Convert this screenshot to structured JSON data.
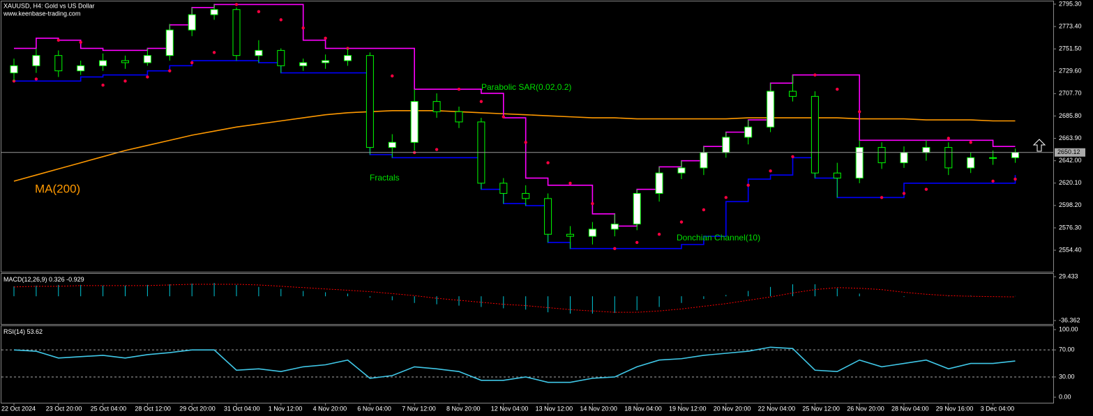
{
  "chart_data": [
    {
      "type": "candlestick",
      "title": "XAUUSD, H4:  Gold vs US Dollar",
      "subtitle": "www.keenbase-trading.com",
      "categories": [
        "22 Oct 2024",
        null,
        "23 Oct 20:00",
        null,
        "25 Oct 04:00",
        null,
        "28 Oct 12:00",
        null,
        "29 Oct 20:00",
        null,
        "31 Oct 04:00",
        null,
        "1 Nov 12:00",
        null,
        "4 Nov 20:00",
        null,
        "6 Nov 04:00",
        null,
        "7 Nov 12:00",
        null,
        "8 Nov 20:00",
        null,
        "12 Nov 04:00",
        null,
        "13 Nov 12:00",
        null,
        "14 Nov 20:00",
        null,
        "18 Nov 04:00",
        null,
        "19 Nov 12:00",
        null,
        "20 Nov 20:00",
        null,
        "22 Nov 04:00",
        null,
        "25 Nov 12:00",
        null,
        "26 Nov 20:00",
        null,
        "28 Nov 04:00",
        null,
        "29 Nov 16:00",
        null,
        "3 Dec 04:00",
        null
      ],
      "open": [
        2728,
        2735,
        2745,
        2730,
        2735,
        2740,
        2738,
        2745,
        2770,
        2785,
        2790,
        2745,
        2750,
        2735,
        2738,
        2740,
        2745,
        2655,
        2660,
        2700,
        2690,
        2680,
        2620,
        2610,
        2605,
        2570,
        2568,
        2575,
        2580,
        2610,
        2630,
        2635,
        2650,
        2665,
        2675,
        2710,
        2705,
        2630,
        2625,
        2655,
        2640,
        2650,
        2655,
        2635,
        2645,
        2645
      ],
      "high": [
        2742,
        2752,
        2750,
        2740,
        2747,
        2745,
        2752,
        2776,
        2792,
        2795,
        2792,
        2760,
        2752,
        2742,
        2746,
        2752,
        2748,
        2668,
        2712,
        2708,
        2695,
        2684,
        2625,
        2618,
        2610,
        2578,
        2582,
        2590,
        2614,
        2636,
        2642,
        2656,
        2670,
        2682,
        2718,
        2726,
        2710,
        2640,
        2662,
        2660,
        2656,
        2662,
        2660,
        2650,
        2652,
        2654
      ],
      "low": [
        2720,
        2728,
        2724,
        2726,
        2730,
        2732,
        2735,
        2740,
        2764,
        2780,
        2740,
        2738,
        2728,
        2730,
        2732,
        2735,
        2648,
        2645,
        2652,
        2684,
        2674,
        2614,
        2600,
        2598,
        2562,
        2556,
        2560,
        2568,
        2574,
        2602,
        2624,
        2628,
        2645,
        2658,
        2670,
        2700,
        2625,
        2606,
        2620,
        2634,
        2635,
        2642,
        2628,
        2630,
        2638,
        2640
      ],
      "close": [
        2735,
        2745,
        2730,
        2735,
        2740,
        2738,
        2745,
        2770,
        2785,
        2790,
        2745,
        2750,
        2735,
        2738,
        2740,
        2745,
        2655,
        2660,
        2700,
        2690,
        2680,
        2620,
        2610,
        2605,
        2570,
        2568,
        2575,
        2580,
        2610,
        2630,
        2635,
        2650,
        2665,
        2675,
        2710,
        2705,
        2630,
        2625,
        2655,
        2640,
        2650,
        2655,
        2635,
        2645,
        2645,
        2650.12
      ],
      "up_color": "#ffffff",
      "down_color": "#000000",
      "outline_color": "#00ff00",
      "ylim": [
        2533.3,
        2798
      ],
      "yticks": [
        {
          "value": 2554.4,
          "label": "2554.40"
        },
        {
          "value": 2576.3,
          "label": "2576.30"
        },
        {
          "value": 2598.2,
          "label": "2598.20"
        },
        {
          "value": 2620.1,
          "label": "2620.10"
        },
        {
          "value": 2642,
          "label": "2642.00"
        },
        {
          "value": 2663.9,
          "label": "2663.90"
        },
        {
          "value": 2685.8,
          "label": "2685.80"
        },
        {
          "value": 2707.7,
          "label": "2707.70"
        },
        {
          "value": 2729.6,
          "label": "2729.60"
        },
        {
          "value": 2751.5,
          "label": "2751.50"
        },
        {
          "value": 2773.4,
          "label": "2773.40"
        },
        {
          "value": 2795.3,
          "label": "2795.30"
        }
      ],
      "series": [
        {
          "name": "MA(200)",
          "color": "#ff9900",
          "style": "line",
          "values": [
            2622,
            2628,
            2634,
            2640,
            2646,
            2652,
            2657,
            2662,
            2667,
            2671,
            2675,
            2678,
            2681,
            2684,
            2687,
            2689,
            2690,
            2691,
            2691,
            2691,
            2690,
            2689,
            2688,
            2687,
            2686,
            2685,
            2684,
            2684,
            2683,
            2683,
            2683,
            2683,
            2683,
            2684,
            2684,
            2684,
            2684,
            2684,
            2683,
            2683,
            2683,
            2682,
            2682,
            2682,
            2681,
            2681
          ]
        },
        {
          "name": "Donchian Channel(10)",
          "color": "#ff00ff",
          "style": "step",
          "values": [
            2752,
            2762,
            2760,
            2752,
            2750,
            2750,
            2752,
            2775,
            2792,
            2795,
            2795,
            2795,
            2795,
            2760,
            2752,
            2752,
            2752,
            2752,
            2712,
            2712,
            2712,
            2708,
            2684,
            2625,
            2618,
            2618,
            2590,
            2578,
            2614,
            2636,
            2642,
            2656,
            2670,
            2682,
            2718,
            2726,
            2726,
            2726,
            2662,
            2662,
            2662,
            2662,
            2662,
            2662,
            2656,
            2656
          ]
        },
        {
          "color": "#0000ff",
          "style": "step",
          "values": [
            2720,
            2720,
            2720,
            2724,
            2726,
            2726,
            2730,
            2735,
            2740,
            2740,
            2740,
            2738,
            2728,
            2728,
            2728,
            2728,
            2648,
            2645,
            2645,
            2645,
            2645,
            2614,
            2600,
            2598,
            2562,
            2556,
            2556,
            2556,
            2556,
            2556,
            2560,
            2568,
            2602,
            2624,
            2628,
            2645,
            2625,
            2606,
            2606,
            2606,
            2620,
            2620,
            2620,
            2620,
            2620,
            2628
          ]
        },
        {
          "name": "Parabolic SAR(0.02,0.2)",
          "color": "#ff0040",
          "style": "dots",
          "values": [
            2720,
            2722,
            2760,
            2758,
            2716,
            2720,
            2724,
            2730,
            2738,
            2748,
            2795,
            2788,
            2780,
            2772,
            2762,
            2752,
            2740,
            2725,
            2650,
            2653,
            2712,
            2700,
            2685,
            2660,
            2640,
            2620,
            2600,
            2556,
            2562,
            2570,
            2582,
            2594,
            2606,
            2618,
            2632,
            2646,
            2726,
            2712,
            2690,
            2606,
            2610,
            2614,
            2664,
            2660,
            2622,
            2624
          ]
        }
      ],
      "annotations": [
        "Fractals"
      ]
    },
    {
      "type": "macd",
      "title": "MACD(12,26,9)",
      "ylim": [
        -41.58,
        33.61
      ],
      "yticks": [
        29.433,
        -36.362
      ],
      "series": [
        {
          "style": "histogram",
          "color": "#00c8d8",
          "values": [
            15,
            16,
            17,
            17,
            16,
            16,
            17,
            18,
            19,
            20,
            17,
            14,
            11,
            8,
            6,
            4,
            -2,
            -6,
            -10,
            -12,
            -14,
            -16,
            -18,
            -20,
            -24,
            -26,
            -26,
            -25,
            -21,
            -16,
            -10,
            -4,
            2,
            8,
            14,
            18,
            18,
            12,
            4,
            0,
            -1,
            0,
            1,
            1,
            0,
            0.326
          ]
        },
        {
          "style": "dashed",
          "color": "#ff0000",
          "values": [
            14,
            15,
            15,
            16,
            16,
            16,
            16,
            17,
            18,
            18,
            18,
            17,
            15,
            13,
            11,
            9,
            7,
            4,
            1,
            -3,
            -6,
            -9,
            -12,
            -14,
            -17,
            -20,
            -22,
            -24,
            -24,
            -22,
            -19,
            -15,
            -11,
            -6,
            -1,
            5,
            10,
            13,
            12,
            10,
            6,
            3,
            1,
            0,
            -0.5,
            -0.929
          ]
        }
      ]
    },
    {
      "type": "line",
      "title": "RSI(14)",
      "ylim": [
        -8.2,
        105.2
      ],
      "yticks": [
        {
          "value": 100,
          "label": "100.00"
        },
        {
          "value": 70,
          "label": "70.00"
        },
        {
          "value": 30,
          "label": "30.00"
        },
        {
          "value": 0,
          "label": "0.00"
        }
      ],
      "series": [
        {
          "style": "line",
          "color": "#40c8e8",
          "values": [
            70,
            68,
            58,
            60,
            62,
            58,
            63,
            66,
            70,
            70,
            40,
            42,
            38,
            45,
            48,
            55,
            28,
            32,
            45,
            42,
            38,
            25,
            25,
            30,
            22,
            22,
            28,
            30,
            45,
            55,
            57,
            62,
            65,
            68,
            74,
            72,
            40,
            38,
            55,
            45,
            50,
            55,
            42,
            50,
            50,
            53.62
          ]
        }
      ]
    }
  ]
}
